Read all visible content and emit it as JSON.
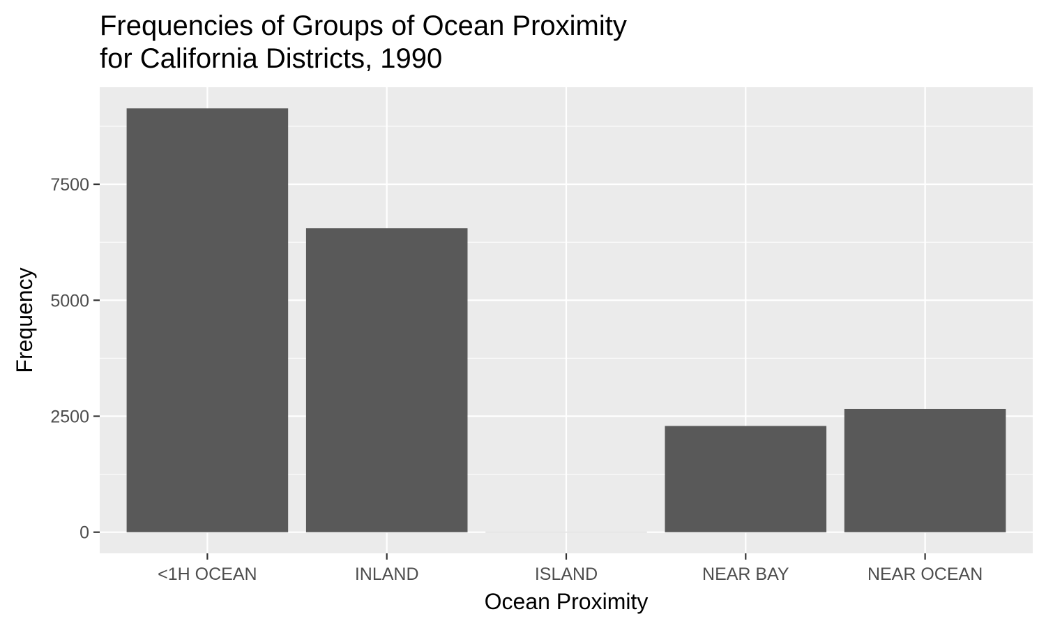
{
  "chart_data": {
    "type": "bar",
    "title_lines": [
      "Frequencies of Groups of Ocean Proximity",
      "for California Districts, 1990"
    ],
    "xlabel": "Ocean Proximity",
    "ylabel": "Frequency",
    "categories": [
      "<1H OCEAN",
      "INLAND",
      "ISLAND",
      "NEAR BAY",
      "NEAR OCEAN"
    ],
    "values": [
      9136,
      6551,
      5,
      2290,
      2658
    ],
    "yticks": [
      0,
      2500,
      5000,
      7500
    ],
    "ytick_labels": [
      "0",
      "2500",
      "5000",
      "7500"
    ],
    "ylim": [
      -456,
      9592
    ],
    "grid": true,
    "legend": "none",
    "colors": {
      "bar": "#595959",
      "panel": "#ebebeb",
      "grid": "#ffffff",
      "tick_text": "#4d4d4d",
      "axis_tick": "#333333"
    }
  }
}
